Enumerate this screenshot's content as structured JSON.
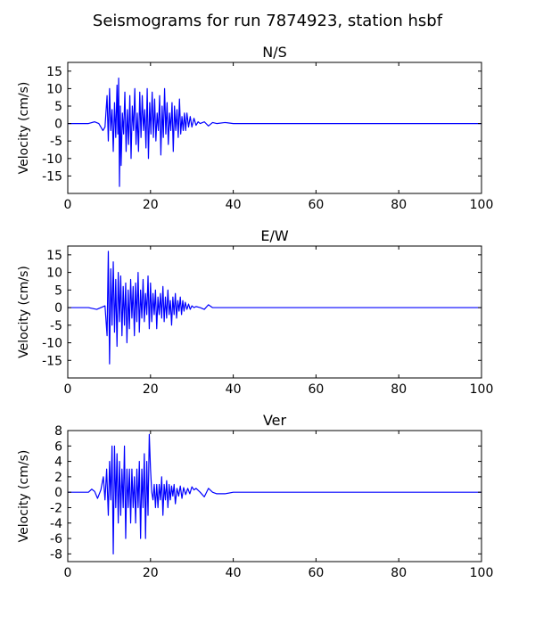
{
  "figure": {
    "title": "Seismograms for run 7874923, station hsbf"
  },
  "chart_data": [
    {
      "type": "line",
      "title": "N/S",
      "xlabel": "",
      "ylabel": "Velocity (cm/s)",
      "xlim": [
        0,
        100
      ],
      "ylim": [
        -20,
        17.5
      ],
      "xticks": [
        "0",
        "20",
        "40",
        "60",
        "80",
        "100"
      ],
      "yticks": [
        "15",
        "10",
        "5",
        "0",
        "-5",
        "-10",
        "-15"
      ],
      "grid": false,
      "series": [
        {
          "color": "#0000ff",
          "x": [
            0,
            5,
            6.5,
            7.5,
            8.5,
            9,
            9.5,
            9.8,
            10.1,
            10.4,
            10.7,
            11.0,
            11.3,
            11.6,
            11.9,
            12.1,
            12.3,
            12.5,
            12.7,
            12.9,
            13.2,
            13.5,
            13.8,
            14.1,
            14.4,
            14.7,
            15.0,
            15.3,
            15.6,
            15.9,
            16.2,
            16.5,
            16.8,
            17.1,
            17.4,
            17.7,
            18.0,
            18.3,
            18.6,
            18.9,
            19.2,
            19.5,
            19.8,
            20.1,
            20.4,
            20.7,
            21.0,
            21.3,
            21.6,
            21.9,
            22.2,
            22.5,
            22.8,
            23.1,
            23.4,
            23.7,
            24.0,
            24.3,
            24.6,
            24.9,
            25.2,
            25.5,
            25.8,
            26.1,
            26.4,
            26.7,
            27.0,
            27.3,
            27.6,
            27.9,
            28.2,
            28.5,
            28.8,
            29.2,
            29.6,
            30.0,
            30.5,
            31.0,
            31.5,
            32.0,
            33.0,
            34.0,
            35.0,
            36.0,
            38.0,
            40.0,
            45.0,
            100.0
          ],
          "y": [
            0,
            0,
            0.5,
            0,
            -2,
            -1,
            8,
            -5,
            10,
            -2,
            4,
            -8,
            6,
            -4,
            11,
            -3,
            13,
            -18,
            5,
            -12,
            3,
            -3,
            9,
            -8,
            4,
            -6,
            8,
            -10,
            5,
            -2,
            10,
            -6,
            3,
            -8,
            9,
            -4,
            8,
            -2,
            4,
            -7,
            10,
            -10,
            6,
            -3,
            9,
            -4,
            7,
            -5,
            3,
            -2,
            8,
            -9,
            5,
            -4,
            10,
            -3,
            6,
            -6,
            3,
            -2,
            6,
            -8,
            5,
            -2,
            4,
            -4,
            7,
            -3,
            2,
            -2,
            3,
            -2,
            3,
            -1,
            2,
            -1,
            1.5,
            -0.5,
            0.5,
            0,
            0.5,
            -0.7,
            0.3,
            0,
            0.3,
            0,
            0,
            0
          ]
        }
      ]
    },
    {
      "type": "line",
      "title": "E/W",
      "xlabel": "",
      "ylabel": "Velocity (cm/s)",
      "xlim": [
        0,
        100
      ],
      "ylim": [
        -20,
        17.5
      ],
      "xticks": [
        "0",
        "20",
        "40",
        "60",
        "80",
        "100"
      ],
      "yticks": [
        "15",
        "10",
        "5",
        "0",
        "-5",
        "-10",
        "-15"
      ],
      "grid": false,
      "series": [
        {
          "color": "#0000ff",
          "x": [
            0,
            5,
            7,
            8,
            9,
            9.5,
            9.8,
            10.1,
            10.4,
            10.7,
            11.0,
            11.3,
            11.6,
            11.9,
            12.2,
            12.5,
            12.8,
            13.1,
            13.4,
            13.7,
            14.0,
            14.3,
            14.6,
            14.9,
            15.2,
            15.5,
            15.8,
            16.1,
            16.4,
            16.7,
            17.0,
            17.3,
            17.6,
            17.9,
            18.2,
            18.5,
            18.8,
            19.1,
            19.4,
            19.7,
            20.0,
            20.3,
            20.6,
            20.9,
            21.2,
            21.5,
            21.8,
            22.1,
            22.4,
            22.7,
            23.0,
            23.3,
            23.6,
            23.9,
            24.2,
            24.5,
            24.8,
            25.1,
            25.4,
            25.7,
            26.0,
            26.3,
            26.6,
            26.9,
            27.2,
            27.5,
            27.8,
            28.1,
            28.4,
            28.8,
            29.2,
            29.6,
            30.0,
            30.5,
            31.0,
            32.0,
            33.0,
            34.0,
            35.0,
            36.0,
            38.0,
            40.0,
            45.0,
            100.0
          ],
          "y": [
            0,
            0,
            -0.5,
            0,
            0.5,
            -8,
            16,
            -16,
            11,
            -5,
            13,
            -7,
            8,
            -11,
            10,
            -4,
            9,
            -8,
            6,
            -5,
            7,
            -10,
            5,
            -6,
            8,
            -3,
            6,
            -8,
            7,
            -4,
            10,
            -7,
            5,
            -3,
            8,
            -4,
            4,
            -2,
            9,
            -6,
            7,
            -4,
            4,
            -2,
            5,
            -6,
            3,
            -2,
            4,
            -3,
            6,
            -4,
            3,
            -3,
            5,
            -2,
            2,
            -5,
            3,
            -2,
            4,
            -3,
            2,
            -1,
            3,
            -2,
            2,
            -1,
            1.5,
            -0.5,
            1,
            -0.5,
            0.5,
            0,
            0.3,
            0,
            -0.5,
            0.8,
            0,
            0,
            0,
            0,
            0,
            0
          ]
        }
      ]
    },
    {
      "type": "line",
      "title": "Ver",
      "xlabel": "",
      "ylabel": "Velocity (cm/s)",
      "xlim": [
        0,
        100
      ],
      "ylim": [
        -9,
        8
      ],
      "xticks": [
        "0",
        "20",
        "40",
        "60",
        "80",
        "100"
      ],
      "yticks": [
        "8",
        "6",
        "4",
        "2",
        "0",
        "-2",
        "-4",
        "-6",
        "-8"
      ],
      "grid": false,
      "series": [
        {
          "color": "#0000ff",
          "x": [
            0,
            5,
            5.8,
            6.5,
            7.2,
            8,
            8.6,
            9.0,
            9.4,
            9.8,
            10.1,
            10.4,
            10.7,
            11.0,
            11.3,
            11.6,
            11.9,
            12.2,
            12.5,
            12.8,
            13.1,
            13.4,
            13.7,
            14.0,
            14.3,
            14.6,
            14.9,
            15.2,
            15.5,
            15.8,
            16.1,
            16.4,
            16.7,
            17.0,
            17.3,
            17.6,
            17.9,
            18.2,
            18.5,
            18.8,
            19.1,
            19.4,
            19.7,
            20.0,
            20.3,
            20.6,
            20.9,
            21.2,
            21.5,
            21.8,
            22.1,
            22.4,
            22.7,
            23.0,
            23.3,
            23.6,
            23.9,
            24.2,
            24.5,
            24.8,
            25.1,
            25.4,
            25.7,
            26.0,
            26.4,
            26.8,
            27.2,
            27.6,
            28.0,
            28.5,
            29.0,
            29.5,
            30.0,
            30.5,
            31.0,
            32.0,
            33.0,
            34.0,
            35.0,
            36.0,
            38.0,
            40.0,
            45.0,
            100.0
          ],
          "y": [
            0,
            0,
            0.4,
            0.1,
            -0.8,
            0.3,
            2,
            -1,
            3,
            -3,
            4,
            -1,
            6,
            -8,
            6,
            -2,
            5,
            -4,
            4,
            -3,
            3,
            -2,
            6,
            -6,
            3,
            -2,
            3,
            -4,
            3,
            -2,
            2,
            -4,
            3,
            -2,
            4,
            -6,
            3,
            -2,
            5,
            -6,
            4,
            -3,
            7.5,
            3,
            0,
            -1,
            1,
            -2,
            1,
            -2,
            1,
            -1,
            2,
            -3,
            1,
            -1,
            1.5,
            -2,
            1,
            -1,
            0.8,
            -0.5,
            1,
            -1.5,
            0.5,
            -0.5,
            0.8,
            -0.8,
            0.6,
            -0.3,
            0.5,
            -0.2,
            0.7,
            0.3,
            0.5,
            0,
            -0.6,
            0.5,
            0,
            -0.2,
            -0.2,
            0,
            0,
            0
          ]
        }
      ]
    }
  ]
}
